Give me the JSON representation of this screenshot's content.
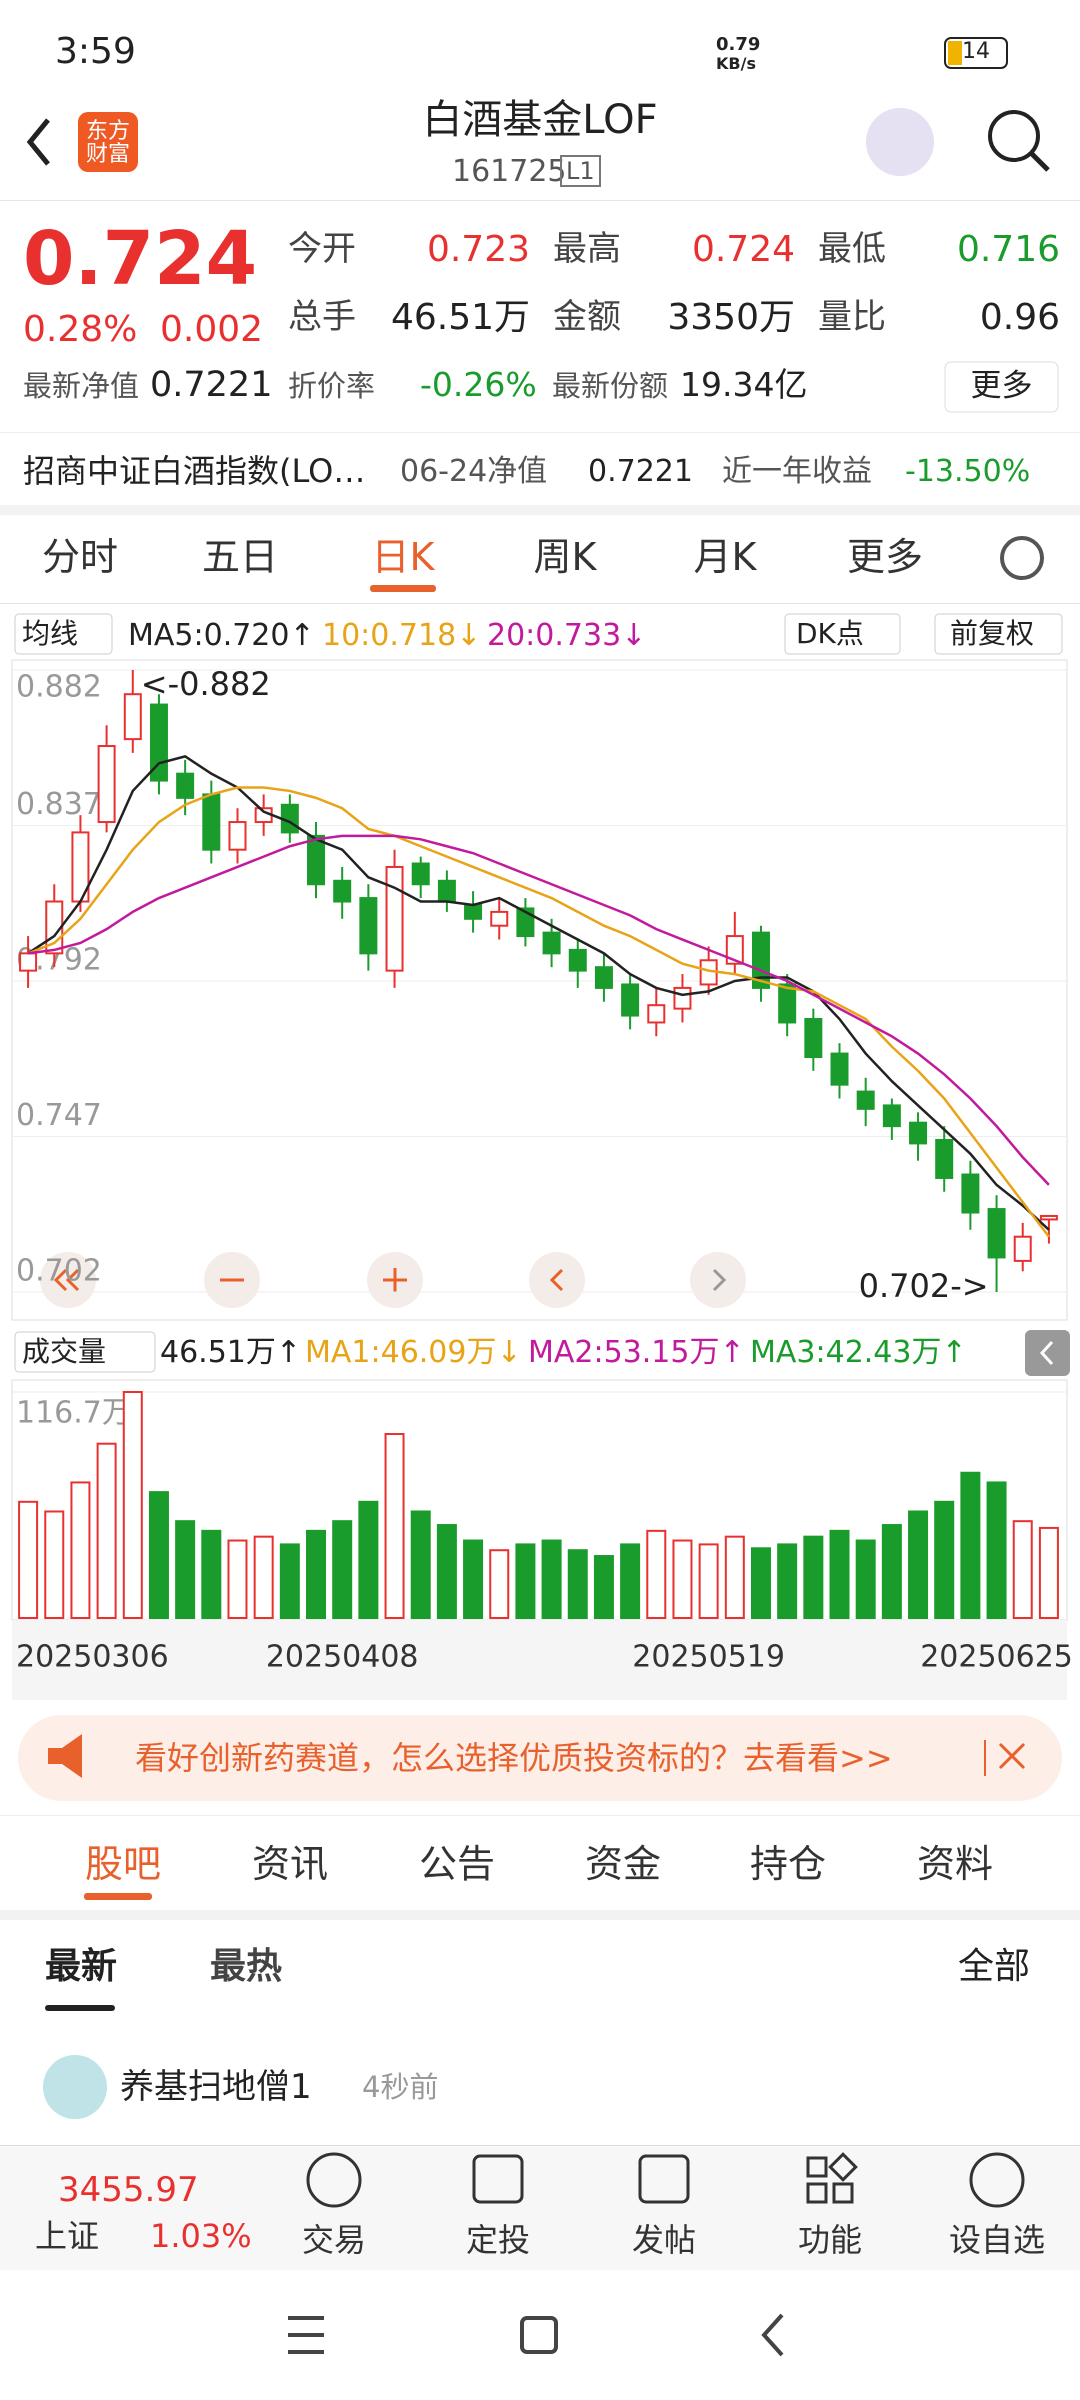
{
  "status_bar": {
    "time": "3:59",
    "net_speed": "0.79",
    "net_unit": "KB/s",
    "battery": "14"
  },
  "header": {
    "logo": "东方财富",
    "title": "白酒基金LOF",
    "code": "161725",
    "level": "L1"
  },
  "quote": {
    "price": "0.724",
    "change_pct": "0.28%",
    "change": "0.002",
    "fields": [
      {
        "label": "今开",
        "value": "0.723",
        "color": "#e8312f"
      },
      {
        "label": "最高",
        "value": "0.724",
        "color": "#e8312f"
      },
      {
        "label": "最低",
        "value": "0.716",
        "color": "#1a9c2c"
      },
      {
        "label": "总手",
        "value": "46.51万",
        "color": "#222222"
      },
      {
        "label": "金额",
        "value": "3350万",
        "color": "#222222"
      },
      {
        "label": "量比",
        "value": "0.96",
        "color": "#222222"
      }
    ],
    "nav": {
      "label": "最新净值",
      "value": "0.7221"
    },
    "discount": {
      "label": "折价率",
      "value": "-0.26%"
    },
    "shares": {
      "label": "最新份额",
      "value": "19.34亿"
    },
    "more": "更多"
  },
  "index_row": {
    "name": "招商中证白酒指数(LO…",
    "nav_label": "06-24净值",
    "nav": "0.7221",
    "return_label": "近一年收益",
    "return": "-13.50%"
  },
  "chart_tabs": [
    "分时",
    "五日",
    "日K",
    "周K",
    "月K",
    "更多"
  ],
  "active_chart_tab": 2,
  "chart_legend": {
    "ma_button": "均线",
    "dk": "DK点",
    "adjust": "前复权"
  },
  "chart_data": [
    {
      "type": "candlestick",
      "open": [
        0.795,
        0.8,
        0.815,
        0.838,
        0.862,
        0.872,
        0.852,
        0.846,
        0.83,
        0.838,
        0.843,
        0.834,
        0.821,
        0.816,
        0.795,
        0.826,
        0.821,
        0.814,
        0.808,
        0.813,
        0.806,
        0.801,
        0.796,
        0.791,
        0.78,
        0.784,
        0.791,
        0.797,
        0.806,
        0.791,
        0.781,
        0.771,
        0.76,
        0.756,
        0.751,
        0.746,
        0.736,
        0.726,
        0.711,
        0.723
      ],
      "high": [
        0.805,
        0.82,
        0.84,
        0.866,
        0.882,
        0.875,
        0.856,
        0.85,
        0.842,
        0.846,
        0.846,
        0.838,
        0.825,
        0.82,
        0.83,
        0.828,
        0.824,
        0.818,
        0.816,
        0.816,
        0.81,
        0.804,
        0.8,
        0.794,
        0.79,
        0.794,
        0.802,
        0.812,
        0.808,
        0.794,
        0.784,
        0.774,
        0.764,
        0.758,
        0.754,
        0.75,
        0.74,
        0.73,
        0.722,
        0.724
      ],
      "low": [
        0.79,
        0.796,
        0.812,
        0.835,
        0.858,
        0.846,
        0.84,
        0.826,
        0.826,
        0.834,
        0.832,
        0.816,
        0.81,
        0.795,
        0.79,
        0.816,
        0.812,
        0.806,
        0.804,
        0.802,
        0.796,
        0.79,
        0.786,
        0.778,
        0.776,
        0.78,
        0.788,
        0.794,
        0.786,
        0.776,
        0.766,
        0.758,
        0.75,
        0.746,
        0.74,
        0.731,
        0.72,
        0.702,
        0.708,
        0.716
      ],
      "close": [
        0.8,
        0.815,
        0.835,
        0.86,
        0.875,
        0.85,
        0.845,
        0.83,
        0.838,
        0.842,
        0.835,
        0.82,
        0.815,
        0.8,
        0.825,
        0.82,
        0.815,
        0.81,
        0.812,
        0.805,
        0.8,
        0.795,
        0.79,
        0.782,
        0.785,
        0.79,
        0.798,
        0.805,
        0.79,
        0.78,
        0.77,
        0.762,
        0.755,
        0.75,
        0.745,
        0.735,
        0.725,
        0.712,
        0.718,
        0.724
      ],
      "up_color": "#e8312f",
      "down_color": "#1a9c2c",
      "series": [
        {
          "label": "MA5:0.720↑",
          "color": "#222222",
          "values": [
            0.8,
            0.805,
            0.815,
            0.83,
            0.847,
            0.855,
            0.857,
            0.852,
            0.848,
            0.841,
            0.838,
            0.833,
            0.83,
            0.822,
            0.819,
            0.815,
            0.815,
            0.814,
            0.816,
            0.812,
            0.808,
            0.804,
            0.8,
            0.794,
            0.79,
            0.788,
            0.789,
            0.792,
            0.793,
            0.793,
            0.789,
            0.781,
            0.771,
            0.763,
            0.756,
            0.749,
            0.742,
            0.733,
            0.727,
            0.72
          ]
        },
        {
          "label": "10:0.718↓",
          "color": "#e8a317",
          "values": [
            0.8,
            0.803,
            0.81,
            0.82,
            0.83,
            0.838,
            0.843,
            0.846,
            0.848,
            0.848,
            0.847,
            0.845,
            0.842,
            0.836,
            0.834,
            0.831,
            0.828,
            0.825,
            0.822,
            0.819,
            0.816,
            0.812,
            0.808,
            0.805,
            0.801,
            0.797,
            0.795,
            0.794,
            0.792,
            0.79,
            0.789,
            0.785,
            0.781,
            0.773,
            0.766,
            0.758,
            0.748,
            0.738,
            0.728,
            0.718
          ]
        },
        {
          "label": "20:0.733↓",
          "color": "#c21a9d",
          "values": [
            0.8,
            0.801,
            0.803,
            0.807,
            0.812,
            0.816,
            0.819,
            0.822,
            0.825,
            0.828,
            0.831,
            0.833,
            0.834,
            0.834,
            0.834,
            0.833,
            0.831,
            0.829,
            0.826,
            0.823,
            0.82,
            0.817,
            0.814,
            0.811,
            0.807,
            0.804,
            0.801,
            0.798,
            0.795,
            0.792,
            0.788,
            0.784,
            0.78,
            0.776,
            0.771,
            0.765,
            0.758,
            0.75,
            0.741,
            0.733
          ]
        }
      ],
      "ylim": [
        0.702,
        0.882
      ],
      "yticks": [
        0.882,
        0.837,
        0.792,
        0.747,
        0.702
      ],
      "annotations": [
        "<-0.882",
        "0.702->"
      ]
    },
    {
      "type": "bar",
      "title": "成交量",
      "categories": [
        "20250306",
        null,
        null,
        null,
        null,
        null,
        null,
        null,
        null,
        null,
        null,
        null,
        "20250408",
        null,
        null,
        null,
        null,
        null,
        null,
        null,
        null,
        null,
        null,
        null,
        null,
        null,
        "20250519",
        null,
        null,
        null,
        null,
        null,
        null,
        null,
        null,
        null,
        null,
        "20250625",
        null,
        null
      ],
      "values": [
        60,
        55,
        70,
        90,
        116.7,
        65,
        50,
        45,
        40,
        42,
        38,
        45,
        50,
        60,
        95,
        55,
        48,
        40,
        35,
        38,
        40,
        35,
        32,
        38,
        45,
        40,
        38,
        42,
        36,
        38,
        42,
        45,
        40,
        48,
        55,
        60,
        75,
        70,
        50,
        46.51
      ],
      "ylim": [
        0,
        116.7
      ],
      "yticks": [
        {
          "value": 116.7,
          "label": "116.7万"
        }
      ],
      "legend": [
        {
          "label": "46.51万↑",
          "color": "#222222"
        },
        {
          "label": "MA1:46.09万↓",
          "color": "#e8a317"
        },
        {
          "label": "MA2:53.15万↑",
          "color": "#c21a9d"
        },
        {
          "label": "MA3:42.43万↑",
          "color": "#1a9c2c"
        }
      ]
    }
  ],
  "banner": "看好创新药赛道，怎么选择优质投资标的？去看看>>",
  "content_tabs": [
    "股吧",
    "资讯",
    "公告",
    "资金",
    "持仓",
    "资料"
  ],
  "sort": {
    "newest": "最新",
    "hottest": "最热",
    "filter": "全部"
  },
  "post": {
    "author": "养基扫地僧1",
    "time": "4秒前"
  },
  "bottom_nav": {
    "index_value": "3455.97",
    "index_name": "上证",
    "index_change": "1.03%",
    "items": [
      "交易",
      "定投",
      "发帖",
      "功能",
      "设自选"
    ]
  }
}
